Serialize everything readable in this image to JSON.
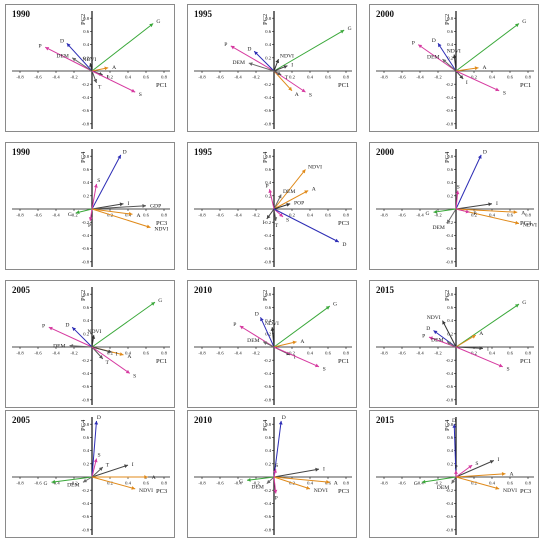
{
  "chart_data": [
    {
      "type": "scatter",
      "year": "1990",
      "xlabel": "PC1",
      "ylabel": "PC2",
      "xticks": [
        "-0.8",
        "-0.6",
        "-0.4",
        "-0.2",
        "0.2",
        "0.4",
        "0.6",
        "0.8"
      ],
      "yticks": [
        "0.8",
        "0.6",
        "0.4",
        "0.2",
        "-0.2",
        "-0.4",
        "-0.6",
        "-0.8"
      ],
      "vectors": [
        {
          "name": "G",
          "x": 0.68,
          "y": 0.72,
          "color": "#3aa83a"
        },
        {
          "name": "P",
          "x": -0.52,
          "y": 0.36,
          "color": "#d63aa0"
        },
        {
          "name": "D",
          "x": -0.28,
          "y": 0.42,
          "color": "#2d2db5"
        },
        {
          "name": "DEM",
          "x": -0.22,
          "y": 0.2,
          "color": "#6a6a6a"
        },
        {
          "name": "NDVI",
          "x": -0.02,
          "y": 0.12,
          "color": "#333333"
        },
        {
          "name": "A",
          "x": 0.18,
          "y": 0.05,
          "color": "#e08a1a"
        },
        {
          "name": "I",
          "x": 0.12,
          "y": -0.06,
          "color": "#444444"
        },
        {
          "name": "T",
          "x": 0.05,
          "y": -0.18,
          "color": "#555555"
        },
        {
          "name": "S",
          "x": 0.48,
          "y": -0.32,
          "color": "#d63aa0"
        }
      ]
    },
    {
      "type": "scatter",
      "year": "1995",
      "xlabel": "PC1",
      "ylabel": "PC2",
      "xticks": [
        "-0.8",
        "-0.6",
        "-0.4",
        "-0.2",
        "0.2",
        "0.4",
        "0.6",
        "0.8"
      ],
      "yticks": [
        "0.8",
        "0.6",
        "0.4",
        "0.2",
        "-0.2",
        "-0.4",
        "-0.6",
        "-0.8"
      ],
      "vectors": [
        {
          "name": "G",
          "x": 0.78,
          "y": 0.62,
          "color": "#3aa83a"
        },
        {
          "name": "P",
          "x": -0.48,
          "y": 0.38,
          "color": "#d63aa0"
        },
        {
          "name": "D",
          "x": -0.22,
          "y": 0.3,
          "color": "#2d2db5"
        },
        {
          "name": "DEM",
          "x": -0.28,
          "y": 0.12,
          "color": "#6a6a6a"
        },
        {
          "name": "NDVI",
          "x": 0.05,
          "y": 0.18,
          "color": "#333333"
        },
        {
          "name": "A",
          "x": 0.2,
          "y": -0.3,
          "color": "#e08a1a"
        },
        {
          "name": "S",
          "x": 0.35,
          "y": -0.32,
          "color": "#d63aa0"
        },
        {
          "name": "I",
          "x": 0.15,
          "y": 0.08,
          "color": "#444444"
        },
        {
          "name": "T",
          "x": 0.08,
          "y": -0.06,
          "color": "#555555"
        }
      ]
    },
    {
      "type": "scatter",
      "year": "2000",
      "xlabel": "PC1",
      "ylabel": "PC2",
      "xticks": [
        "-0.8",
        "-0.6",
        "-0.4",
        "-0.2",
        "0.2",
        "0.4",
        "0.6",
        "0.8"
      ],
      "yticks": [
        "0.8",
        "0.6",
        "0.4",
        "0.2",
        "-0.2",
        "-0.4",
        "-0.6",
        "-0.8"
      ],
      "vectors": [
        {
          "name": "G",
          "x": 0.7,
          "y": 0.72,
          "color": "#3aa83a"
        },
        {
          "name": "P",
          "x": -0.42,
          "y": 0.4,
          "color": "#d63aa0"
        },
        {
          "name": "D",
          "x": -0.2,
          "y": 0.42,
          "color": "#2d2db5"
        },
        {
          "name": "DEM",
          "x": -0.15,
          "y": 0.18,
          "color": "#6a6a6a"
        },
        {
          "name": "NDVI",
          "x": -0.02,
          "y": 0.25,
          "color": "#333333"
        },
        {
          "name": "A",
          "x": 0.25,
          "y": 0.05,
          "color": "#e08a1a"
        },
        {
          "name": "I",
          "x": 0.08,
          "y": -0.12,
          "color": "#444444"
        },
        {
          "name": "S",
          "x": 0.48,
          "y": -0.3,
          "color": "#d63aa0"
        }
      ]
    },
    {
      "type": "scatter",
      "year": "1990",
      "xlabel": "PC3",
      "ylabel": "PC4",
      "xticks": [
        "-0.8",
        "-0.6",
        "-0.4",
        "-0.2",
        "0.2",
        "0.4",
        "0.6",
        "0.8"
      ],
      "yticks": [
        "0.8",
        "0.6",
        "0.4",
        "0.2",
        "-0.2",
        "-0.4",
        "-0.6",
        "-0.8"
      ],
      "vectors": [
        {
          "name": "D",
          "x": 0.32,
          "y": 0.82,
          "color": "#2d2db5"
        },
        {
          "name": "S",
          "x": 0.05,
          "y": 0.38,
          "color": "#d63aa0"
        },
        {
          "name": "I",
          "x": 0.35,
          "y": 0.08,
          "color": "#444444"
        },
        {
          "name": "GDP",
          "x": 0.6,
          "y": 0.05,
          "color": "#555555"
        },
        {
          "name": "A",
          "x": 0.45,
          "y": -0.08,
          "color": "#e08a1a"
        },
        {
          "name": "NDVI",
          "x": 0.65,
          "y": -0.28,
          "color": "#e08a1a"
        },
        {
          "name": "G",
          "x": -0.18,
          "y": -0.06,
          "color": "#3aa83a"
        },
        {
          "name": "P",
          "x": -0.02,
          "y": -0.18,
          "color": "#d63aa0"
        }
      ]
    },
    {
      "type": "scatter",
      "year": "1995",
      "xlabel": "PC3",
      "ylabel": "PC4",
      "xticks": [
        "-0.8",
        "-0.6",
        "-0.4",
        "-0.2",
        "0.2",
        "0.4",
        "0.6",
        "0.8"
      ],
      "yticks": [
        "0.8",
        "0.6",
        "0.4",
        "0.2",
        "-0.2",
        "-0.4",
        "-0.6",
        "-0.8"
      ],
      "vectors": [
        {
          "name": "NDVI",
          "x": 0.35,
          "y": 0.6,
          "color": "#e08a1a"
        },
        {
          "name": "A",
          "x": 0.38,
          "y": 0.28,
          "color": "#e08a1a"
        },
        {
          "name": "DEM",
          "x": 0.08,
          "y": 0.22,
          "color": "#6a6a6a"
        },
        {
          "name": "POP",
          "x": 0.18,
          "y": 0.08,
          "color": "#333333"
        },
        {
          "name": "P",
          "x": -0.05,
          "y": 0.3,
          "color": "#d63aa0"
        },
        {
          "name": "T",
          "x": 0.02,
          "y": -0.18,
          "color": "#555555"
        },
        {
          "name": "I",
          "x": -0.08,
          "y": -0.15,
          "color": "#444444"
        },
        {
          "name": "S",
          "x": 0.1,
          "y": -0.12,
          "color": "#d63aa0"
        },
        {
          "name": "D",
          "x": 0.72,
          "y": -0.5,
          "color": "#2d2db5"
        }
      ]
    },
    {
      "type": "scatter",
      "year": "2000",
      "xlabel": "PC3",
      "ylabel": "PC4",
      "xticks": [
        "-0.8",
        "-0.6",
        "-0.4",
        "-0.2",
        "0.2",
        "0.4",
        "0.6",
        "0.8"
      ],
      "yticks": [
        "0.8",
        "0.6",
        "0.4",
        "0.2",
        "-0.2",
        "-0.4",
        "-0.6",
        "-0.8"
      ],
      "vectors": [
        {
          "name": "D",
          "x": 0.28,
          "y": 0.82,
          "color": "#2d2db5"
        },
        {
          "name": "S",
          "x": 0.02,
          "y": 0.28,
          "color": "#d63aa0"
        },
        {
          "name": "I",
          "x": 0.4,
          "y": 0.08,
          "color": "#444444"
        },
        {
          "name": "A",
          "x": 0.68,
          "y": -0.05,
          "color": "#e08a1a"
        },
        {
          "name": "NDVI",
          "x": 0.7,
          "y": -0.22,
          "color": "#e08a1a"
        },
        {
          "name": "DEM",
          "x": -0.1,
          "y": -0.22,
          "color": "#6a6a6a"
        },
        {
          "name": "G",
          "x": -0.25,
          "y": -0.05,
          "color": "#3aa83a"
        },
        {
          "name": "P",
          "x": 0.15,
          "y": -0.05,
          "color": "#d63aa0"
        }
      ]
    },
    {
      "type": "scatter",
      "year": "2005",
      "xlabel": "PC1",
      "ylabel": "PC2",
      "xticks": [
        "-0.8",
        "-0.6",
        "-0.4",
        "-0.2",
        "0.2",
        "0.4",
        "0.6",
        "0.8"
      ],
      "yticks": [
        "0.8",
        "0.6",
        "0.4",
        "0.2",
        "-0.2",
        "-0.4",
        "-0.6",
        "-0.8"
      ],
      "vectors": [
        {
          "name": "G",
          "x": 0.7,
          "y": 0.68,
          "color": "#3aa83a"
        },
        {
          "name": "P",
          "x": -0.48,
          "y": 0.3,
          "color": "#d63aa0"
        },
        {
          "name": "D",
          "x": -0.22,
          "y": 0.3,
          "color": "#2d2db5"
        },
        {
          "name": "NDVI",
          "x": 0.02,
          "y": 0.18,
          "color": "#333333"
        },
        {
          "name": "DEM",
          "x": -0.25,
          "y": 0.02,
          "color": "#6a6a6a"
        },
        {
          "name": "A",
          "x": 0.35,
          "y": -0.12,
          "color": "#e08a1a"
        },
        {
          "name": "T",
          "x": 0.12,
          "y": -0.18,
          "color": "#555555"
        },
        {
          "name": "I",
          "x": 0.22,
          "y": -0.08,
          "color": "#444444"
        },
        {
          "name": "S",
          "x": 0.42,
          "y": -0.4,
          "color": "#d63aa0"
        }
      ]
    },
    {
      "type": "scatter",
      "year": "2010",
      "xlabel": "PC1",
      "ylabel": "PC2",
      "xticks": [
        "-0.8",
        "-0.6",
        "-0.4",
        "-0.2",
        "0.2",
        "0.4",
        "0.6",
        "0.8"
      ],
      "yticks": [
        "0.8",
        "0.6",
        "0.4",
        "0.2",
        "-0.2",
        "-0.4",
        "-0.6",
        "-0.8"
      ],
      "vectors": [
        {
          "name": "G",
          "x": 0.62,
          "y": 0.62,
          "color": "#3aa83a"
        },
        {
          "name": "P",
          "x": -0.38,
          "y": 0.32,
          "color": "#d63aa0"
        },
        {
          "name": "D",
          "x": -0.15,
          "y": 0.45,
          "color": "#2d2db5"
        },
        {
          "name": "NDVI",
          "x": -0.02,
          "y": 0.3,
          "color": "#333333"
        },
        {
          "name": "DEM",
          "x": -0.12,
          "y": 0.08,
          "color": "#6a6a6a"
        },
        {
          "name": "A",
          "x": 0.25,
          "y": 0.08,
          "color": "#e08a1a"
        },
        {
          "name": "I",
          "x": 0.18,
          "y": -0.12,
          "color": "#444444"
        },
        {
          "name": "S",
          "x": 0.5,
          "y": -0.3,
          "color": "#d63aa0"
        }
      ]
    },
    {
      "type": "scatter",
      "year": "2015",
      "xlabel": "PC1",
      "ylabel": "PC2",
      "xticks": [
        "-0.8",
        "-0.6",
        "-0.4",
        "-0.2",
        "0.2",
        "0.4",
        "0.6",
        "0.8"
      ],
      "yticks": [
        "0.8",
        "0.6",
        "0.4",
        "0.2",
        "-0.2",
        "-0.4",
        "-0.6",
        "-0.8"
      ],
      "vectors": [
        {
          "name": "G",
          "x": 0.7,
          "y": 0.65,
          "color": "#3aa83a"
        },
        {
          "name": "NDVI",
          "x": -0.15,
          "y": 0.4,
          "color": "#333333"
        },
        {
          "name": "D",
          "x": -0.25,
          "y": 0.25,
          "color": "#2d2db5"
        },
        {
          "name": "P",
          "x": -0.3,
          "y": 0.15,
          "color": "#d63aa0"
        },
        {
          "name": "DEM",
          "x": -0.1,
          "y": 0.08,
          "color": "#6a6a6a"
        },
        {
          "name": "A",
          "x": 0.22,
          "y": 0.18,
          "color": "#e08a1a"
        },
        {
          "name": "I",
          "x": 0.3,
          "y": -0.02,
          "color": "#444444"
        },
        {
          "name": "S",
          "x": 0.52,
          "y": -0.3,
          "color": "#d63aa0"
        }
      ]
    },
    {
      "type": "scatter",
      "year": "2005",
      "xlabel": "PC3",
      "ylabel": "PC4",
      "xticks": [
        "-0.8",
        "-0.6",
        "-0.4",
        "-0.2",
        "0.2",
        "0.4",
        "0.6",
        "0.8"
      ],
      "yticks": [
        "0.8",
        "0.6",
        "0.4",
        "0.2",
        "-0.2",
        "-0.4",
        "-0.6",
        "-0.8"
      ],
      "vectors": [
        {
          "name": "D",
          "x": 0.05,
          "y": 0.85,
          "color": "#2d2db5"
        },
        {
          "name": "S",
          "x": 0.05,
          "y": 0.28,
          "color": "#d63aa0"
        },
        {
          "name": "T",
          "x": 0.12,
          "y": 0.15,
          "color": "#555555"
        },
        {
          "name": "I",
          "x": 0.4,
          "y": 0.18,
          "color": "#444444"
        },
        {
          "name": "A",
          "x": 0.62,
          "y": 0.0,
          "color": "#e08a1a"
        },
        {
          "name": "NDVI",
          "x": 0.48,
          "y": -0.18,
          "color": "#e08a1a"
        },
        {
          "name": "G",
          "x": -0.45,
          "y": -0.08,
          "color": "#3aa83a"
        },
        {
          "name": "DEM",
          "x": -0.1,
          "y": -0.08,
          "color": "#6a6a6a"
        }
      ]
    },
    {
      "type": "scatter",
      "year": "2010",
      "xlabel": "PC3",
      "ylabel": "PC4",
      "xticks": [
        "-0.8",
        "-0.6",
        "-0.4",
        "-0.2",
        "0.2",
        "0.4",
        "0.6",
        "0.8"
      ],
      "yticks": [
        "0.8",
        "0.6",
        "0.4",
        "0.2",
        "-0.2",
        "-0.4",
        "-0.6",
        "-0.8"
      ],
      "vectors": [
        {
          "name": "D",
          "x": 0.08,
          "y": 0.85,
          "color": "#2d2db5"
        },
        {
          "name": "I",
          "x": 0.5,
          "y": 0.12,
          "color": "#444444"
        },
        {
          "name": "A",
          "x": 0.62,
          "y": -0.08,
          "color": "#e08a1a"
        },
        {
          "name": "NDVI",
          "x": 0.4,
          "y": -0.18,
          "color": "#e08a1a"
        },
        {
          "name": "G",
          "x": -0.3,
          "y": -0.05,
          "color": "#3aa83a"
        },
        {
          "name": "DEM",
          "x": -0.08,
          "y": -0.1,
          "color": "#6a6a6a"
        },
        {
          "name": "S",
          "x": 0.02,
          "y": 0.12,
          "color": "#d63aa0"
        },
        {
          "name": "P",
          "x": 0.02,
          "y": -0.25,
          "color": "#d63aa0"
        }
      ]
    },
    {
      "type": "scatter",
      "year": "2015",
      "xlabel": "PC3",
      "ylabel": "PC4",
      "xticks": [
        "-0.8",
        "-0.6",
        "-0.4",
        "-0.2",
        "0.2",
        "0.4",
        "0.6",
        "0.8"
      ],
      "yticks": [
        "0.8",
        "0.6",
        "0.4",
        "0.2",
        "-0.2",
        "-0.4",
        "-0.6",
        "-0.8"
      ],
      "vectors": [
        {
          "name": "D",
          "x": -0.02,
          "y": 0.8,
          "color": "#2d2db5"
        },
        {
          "name": "I",
          "x": 0.42,
          "y": 0.25,
          "color": "#444444"
        },
        {
          "name": "S",
          "x": 0.18,
          "y": 0.18,
          "color": "#d63aa0"
        },
        {
          "name": "A",
          "x": 0.55,
          "y": 0.05,
          "color": "#e08a1a"
        },
        {
          "name": "NDVI",
          "x": 0.48,
          "y": -0.18,
          "color": "#e08a1a"
        },
        {
          "name": "G",
          "x": -0.38,
          "y": -0.08,
          "color": "#3aa83a"
        },
        {
          "name": "DEM",
          "x": -0.05,
          "y": -0.1,
          "color": "#6a6a6a"
        },
        {
          "name": "P",
          "x": 0.0,
          "y": 0.1,
          "color": "#d63aa0"
        }
      ]
    }
  ]
}
